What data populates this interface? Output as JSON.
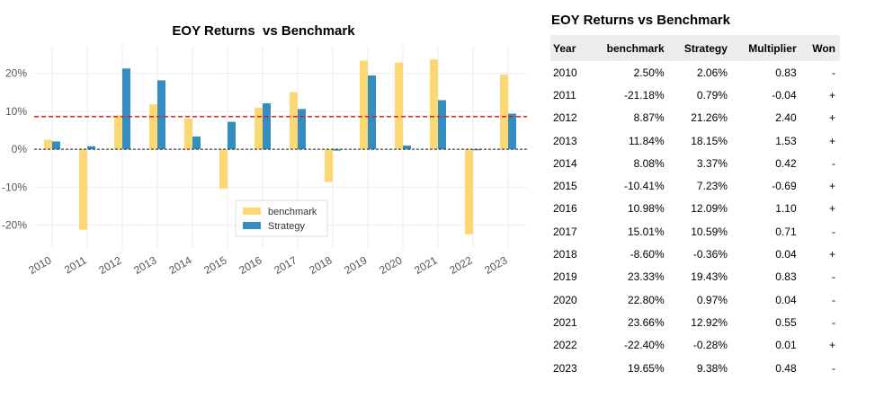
{
  "chart_data": {
    "type": "bar",
    "title": "EOY Returns  vs Benchmark",
    "categories": [
      "2010",
      "2011",
      "2012",
      "2013",
      "2014",
      "2015",
      "2016",
      "2017",
      "2018",
      "2019",
      "2020",
      "2021",
      "2022",
      "2023"
    ],
    "series": [
      {
        "name": "benchmark",
        "color": "#fcd874",
        "values": [
          2.5,
          -21.18,
          8.87,
          11.84,
          8.08,
          -10.41,
          10.98,
          15.01,
          -8.6,
          23.33,
          22.8,
          23.66,
          -22.4,
          19.65
        ]
      },
      {
        "name": "Strategy",
        "color": "#348dc1",
        "values": [
          2.06,
          0.79,
          21.26,
          18.15,
          3.37,
          7.23,
          12.09,
          10.59,
          -0.36,
          19.43,
          0.97,
          12.92,
          -0.28,
          9.38
        ]
      }
    ],
    "ylim": [
      -26,
      27
    ],
    "yticks": [
      -20,
      -10,
      0,
      10,
      20
    ],
    "ytick_labels": [
      "-20%",
      "-10%",
      "0%",
      "10%",
      "20%"
    ],
    "mean_line": {
      "value": 8.6,
      "color": "#e32020",
      "style": "dashed"
    },
    "zero_line": {
      "value": 0,
      "color": "#444444",
      "style": "dashed"
    },
    "grid": true,
    "legend_position": "lower-center"
  },
  "table": {
    "title": "EOY Returns vs Benchmark",
    "columns": [
      "Year",
      "benchmark",
      "Strategy",
      "Multiplier",
      "Won"
    ],
    "rows": [
      [
        "2010",
        "2.50%",
        "2.06%",
        "0.83",
        "-"
      ],
      [
        "2011",
        "-21.18%",
        "0.79%",
        "-0.04",
        "+"
      ],
      [
        "2012",
        "8.87%",
        "21.26%",
        "2.40",
        "+"
      ],
      [
        "2013",
        "11.84%",
        "18.15%",
        "1.53",
        "+"
      ],
      [
        "2014",
        "8.08%",
        "3.37%",
        "0.42",
        "-"
      ],
      [
        "2015",
        "-10.41%",
        "7.23%",
        "-0.69",
        "+"
      ],
      [
        "2016",
        "10.98%",
        "12.09%",
        "1.10",
        "+"
      ],
      [
        "2017",
        "15.01%",
        "10.59%",
        "0.71",
        "-"
      ],
      [
        "2018",
        "-8.60%",
        "-0.36%",
        "0.04",
        "+"
      ],
      [
        "2019",
        "23.33%",
        "19.43%",
        "0.83",
        "-"
      ],
      [
        "2020",
        "22.80%",
        "0.97%",
        "0.04",
        "-"
      ],
      [
        "2021",
        "23.66%",
        "12.92%",
        "0.55",
        "-"
      ],
      [
        "2022",
        "-22.40%",
        "-0.28%",
        "0.01",
        "+"
      ],
      [
        "2023",
        "19.65%",
        "9.38%",
        "0.48",
        "-"
      ]
    ]
  }
}
